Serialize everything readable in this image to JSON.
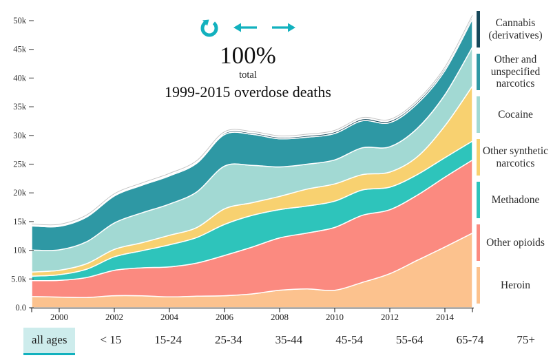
{
  "accent": {
    "teal": "#12b1be",
    "selected_bg": "#cdecec",
    "axis_color": "#333333",
    "band_stroke": "#ffffff",
    "total_outline": "#c4c4c4"
  },
  "header": {
    "percent": "100%",
    "subtitle": "total",
    "title": "1999-2015 overdose deaths",
    "icons": {
      "reset": "refresh-cycle",
      "pan_left": "left-arrow",
      "pan_right": "right-arrow"
    }
  },
  "chart_data": {
    "type": "area",
    "stacked": true,
    "title": "100% total 1999-2015 overdose deaths",
    "xlabel": "",
    "ylabel": "overdose deaths",
    "xlim": [
      1999,
      2015
    ],
    "ylim": [
      0,
      50000
    ],
    "grid": false,
    "legend_position": "right",
    "x": [
      1999,
      2000,
      2001,
      2002,
      2003,
      2004,
      2005,
      2006,
      2007,
      2008,
      2009,
      2010,
      2011,
      2012,
      2013,
      2014,
      2015
    ],
    "xticks": [
      2000,
      2002,
      2004,
      2006,
      2008,
      2010,
      2012,
      2014
    ],
    "yticks": [
      {
        "value": 0,
        "label": "0.0"
      },
      {
        "value": 5000,
        "label": "5.0k"
      },
      {
        "value": 10000,
        "label": "10k"
      },
      {
        "value": 15000,
        "label": "15k"
      },
      {
        "value": 20000,
        "label": "20k"
      },
      {
        "value": 25000,
        "label": "25k"
      },
      {
        "value": 30000,
        "label": "30k"
      },
      {
        "value": 35000,
        "label": "35k"
      },
      {
        "value": 40000,
        "label": "40k"
      },
      {
        "value": 45000,
        "label": "45k"
      },
      {
        "value": 50000,
        "label": "50k"
      }
    ],
    "series": [
      {
        "name": "heroin",
        "label": "Heroin",
        "color": "#fcc28e",
        "values": [
          1960,
          1842,
          1779,
          2089,
          2080,
          1878,
          2009,
          2088,
          2399,
          3041,
          3278,
          3036,
          4397,
          5925,
          8257,
          10574,
          12989
        ]
      },
      {
        "name": "other_opioids",
        "label": "Other opioids",
        "color": "#fb8a80",
        "values": [
          2749,
          2917,
          3479,
          4416,
          4867,
          5231,
          5774,
          7017,
          8158,
          9119,
          9735,
          10943,
          11693,
          11140,
          11346,
          12159,
          12727
        ]
      },
      {
        "name": "methadone",
        "label": "Methadone",
        "color": "#2ec4bb",
        "values": [
          784,
          986,
          1456,
          2360,
          2972,
          3845,
          4460,
          5406,
          5518,
          4924,
          4696,
          4577,
          4418,
          3932,
          3591,
          3400,
          3301
        ]
      },
      {
        "name": "other_synthetic",
        "label": "Other synthetic narcotics",
        "color": "#f8d170",
        "values": [
          730,
          782,
          957,
          1295,
          1400,
          1664,
          1742,
          2707,
          2213,
          2306,
          2946,
          3007,
          2666,
          2628,
          3105,
          5544,
          9580
        ]
      },
      {
        "name": "cocaine",
        "label": "Cocaine",
        "color": "#a2d9d3",
        "values": [
          3822,
          3544,
          3833,
          4599,
          5199,
          5443,
          6208,
          7448,
          6512,
          5129,
          4350,
          4183,
          4681,
          4404,
          4944,
          5415,
          6784
        ]
      },
      {
        "name": "other_unspecified",
        "label": "Other and unspecified narcotics",
        "color": "#2e98a4",
        "values": [
          4200,
          4100,
          4300,
          4700,
          4800,
          4900,
          5000,
          5500,
          5400,
          4900,
          4700,
          4600,
          4700,
          4200,
          4300,
          4200,
          4900
        ]
      },
      {
        "name": "cannabis",
        "label": "Cannabis (derivatives)",
        "color": "#17485a",
        "values": [
          100,
          110,
          120,
          150,
          170,
          190,
          210,
          240,
          260,
          270,
          280,
          300,
          320,
          330,
          350,
          380,
          420
        ]
      }
    ]
  },
  "legend": {
    "order": [
      "cannabis",
      "other_unspecified",
      "cocaine",
      "other_synthetic",
      "methadone",
      "other_opioids",
      "heroin"
    ]
  },
  "filters": {
    "age_groups": [
      {
        "label": "all ages",
        "selected": true
      },
      {
        "label": "< 15",
        "selected": false
      },
      {
        "label": "15-24",
        "selected": false
      },
      {
        "label": "25-34",
        "selected": false
      },
      {
        "label": "35-44",
        "selected": false
      },
      {
        "label": "45-54",
        "selected": false
      },
      {
        "label": "55-64",
        "selected": false
      },
      {
        "label": "65-74",
        "selected": false
      },
      {
        "label": "75+",
        "selected": false
      }
    ]
  }
}
